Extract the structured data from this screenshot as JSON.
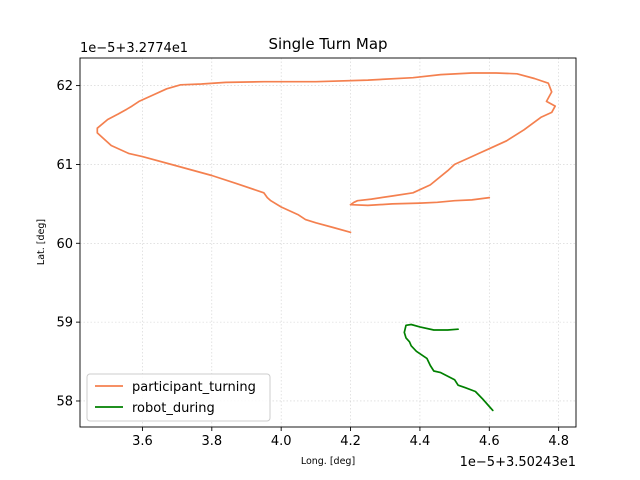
{
  "chart_data": {
    "type": "line",
    "title": "Single Turn Map",
    "xlabel": "Long. [deg]",
    "ylabel": "Lat. [deg]",
    "x_offset_label": "1e−5+3.50243e1",
    "y_offset_label": "1e−5+3.2774e1",
    "xlim": [
      3.42,
      4.85
    ],
    "ylim": [
      57.67,
      62.35
    ],
    "xticks": [
      3.6,
      3.8,
      4.0,
      4.2,
      4.4,
      4.6,
      4.8
    ],
    "xtick_labels": [
      "3.6",
      "3.8",
      "4.0",
      "4.2",
      "4.4",
      "4.6",
      "4.8"
    ],
    "yticks": [
      58,
      59,
      60,
      61,
      62
    ],
    "ytick_labels": [
      "58",
      "59",
      "60",
      "61",
      "62"
    ],
    "grid": true,
    "legend_position": "lower-left",
    "series": [
      {
        "name": "participant_turning",
        "color": "#f4804f",
        "points": [
          [
            4.2,
            60.14
          ],
          [
            4.15,
            60.2
          ],
          [
            4.1,
            60.26
          ],
          [
            4.07,
            60.3
          ],
          [
            4.05,
            60.36
          ],
          [
            4.0,
            60.46
          ],
          [
            3.97,
            60.54
          ],
          [
            3.96,
            60.58
          ],
          [
            3.95,
            60.64
          ],
          [
            3.87,
            60.76
          ],
          [
            3.8,
            60.86
          ],
          [
            3.7,
            60.98
          ],
          [
            3.6,
            61.1
          ],
          [
            3.56,
            61.14
          ],
          [
            3.51,
            61.24
          ],
          [
            3.485,
            61.34
          ],
          [
            3.47,
            61.4
          ],
          [
            3.47,
            61.46
          ],
          [
            3.5,
            61.57
          ],
          [
            3.53,
            61.64
          ],
          [
            3.555,
            61.7
          ],
          [
            3.57,
            61.74
          ],
          [
            3.59,
            61.8
          ],
          [
            3.63,
            61.88
          ],
          [
            3.67,
            61.96
          ],
          [
            3.71,
            62.01
          ],
          [
            3.77,
            62.02
          ],
          [
            3.84,
            62.04
          ],
          [
            3.95,
            62.05
          ],
          [
            4.1,
            62.05
          ],
          [
            4.25,
            62.07
          ],
          [
            4.38,
            62.1
          ],
          [
            4.46,
            62.14
          ],
          [
            4.55,
            62.16
          ],
          [
            4.62,
            62.16
          ],
          [
            4.68,
            62.15
          ],
          [
            4.73,
            62.09
          ],
          [
            4.77,
            62.03
          ],
          [
            4.78,
            61.92
          ],
          [
            4.765,
            61.8
          ],
          [
            4.79,
            61.74
          ],
          [
            4.78,
            61.66
          ],
          [
            4.75,
            61.6
          ],
          [
            4.7,
            61.44
          ],
          [
            4.65,
            61.3
          ],
          [
            4.6,
            61.2
          ],
          [
            4.57,
            61.14
          ],
          [
            4.54,
            61.08
          ],
          [
            4.5,
            61.0
          ],
          [
            4.48,
            60.92
          ],
          [
            4.43,
            60.74
          ],
          [
            4.38,
            60.64
          ],
          [
            4.32,
            60.6
          ],
          [
            4.26,
            60.56
          ],
          [
            4.22,
            60.54
          ],
          [
            4.21,
            60.52
          ],
          [
            4.2,
            60.49
          ],
          [
            4.25,
            60.48
          ],
          [
            4.32,
            60.5
          ],
          [
            4.4,
            60.51
          ],
          [
            4.45,
            60.52
          ],
          [
            4.5,
            60.54
          ],
          [
            4.55,
            60.55
          ],
          [
            4.6,
            60.58
          ]
        ]
      },
      {
        "name": "robot_during",
        "color": "#008000",
        "points": [
          [
            4.61,
            57.88
          ],
          [
            4.6,
            57.93
          ],
          [
            4.58,
            58.03
          ],
          [
            4.56,
            58.12
          ],
          [
            4.53,
            58.17
          ],
          [
            4.51,
            58.2
          ],
          [
            4.5,
            58.27
          ],
          [
            4.46,
            58.36
          ],
          [
            4.44,
            58.38
          ],
          [
            4.43,
            58.45
          ],
          [
            4.42,
            58.54
          ],
          [
            4.39,
            58.63
          ],
          [
            4.375,
            58.7
          ],
          [
            4.37,
            58.75
          ],
          [
            4.36,
            58.8
          ],
          [
            4.355,
            58.87
          ],
          [
            4.36,
            58.96
          ],
          [
            4.375,
            58.97
          ],
          [
            4.4,
            58.94
          ],
          [
            4.44,
            58.9
          ],
          [
            4.48,
            58.9
          ],
          [
            4.51,
            58.91
          ]
        ]
      }
    ]
  }
}
